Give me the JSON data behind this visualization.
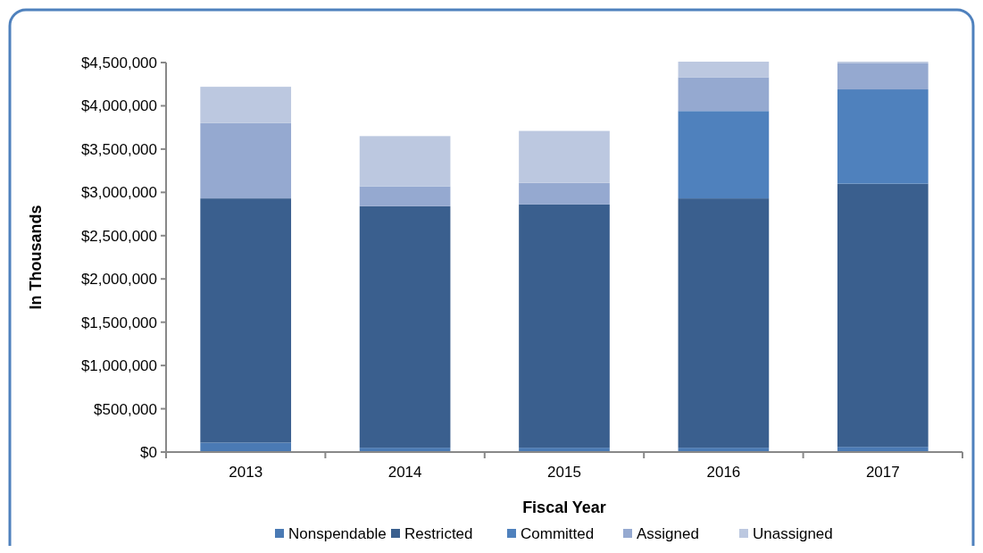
{
  "chart_data": {
    "type": "bar",
    "stacked": true,
    "xlabel": "Fiscal Year",
    "ylabel": "In Thousands",
    "categories": [
      "2013",
      "2014",
      "2015",
      "2016",
      "2017"
    ],
    "series": [
      {
        "name": "Nonspendable",
        "color": "#4a7ab4",
        "values": [
          110000,
          50000,
          50000,
          50000,
          60000
        ]
      },
      {
        "name": "Restricted",
        "color": "#3a5f8e",
        "values": [
          2820000,
          2790000,
          2810000,
          2880000,
          3040000
        ]
      },
      {
        "name": "Committed",
        "color": "#4f81bd",
        "values": [
          0,
          0,
          0,
          1010000,
          1090000
        ]
      },
      {
        "name": "Assigned",
        "color": "#95a9d0",
        "values": [
          870000,
          230000,
          250000,
          390000,
          300000
        ]
      },
      {
        "name": "Unassigned",
        "color": "#bcc8e0",
        "values": [
          420000,
          580000,
          600000,
          180000,
          20000
        ]
      }
    ],
    "ylim": [
      0,
      4500000
    ],
    "yticks": [
      {
        "value": 0,
        "label": "$0"
      },
      {
        "value": 500000,
        "label": "$500,000"
      },
      {
        "value": 1000000,
        "label": "$1,000,000"
      },
      {
        "value": 1500000,
        "label": "$1,500,000"
      },
      {
        "value": 2000000,
        "label": "$2,000,000"
      },
      {
        "value": 2500000,
        "label": "$2,500,000"
      },
      {
        "value": 3000000,
        "label": "$3,000,000"
      },
      {
        "value": 3500000,
        "label": "$3,500,000"
      },
      {
        "value": 4000000,
        "label": "$4,000,000"
      },
      {
        "value": 4500000,
        "label": "$4,500,000"
      }
    ],
    "grid": false,
    "legend": "bottom"
  }
}
